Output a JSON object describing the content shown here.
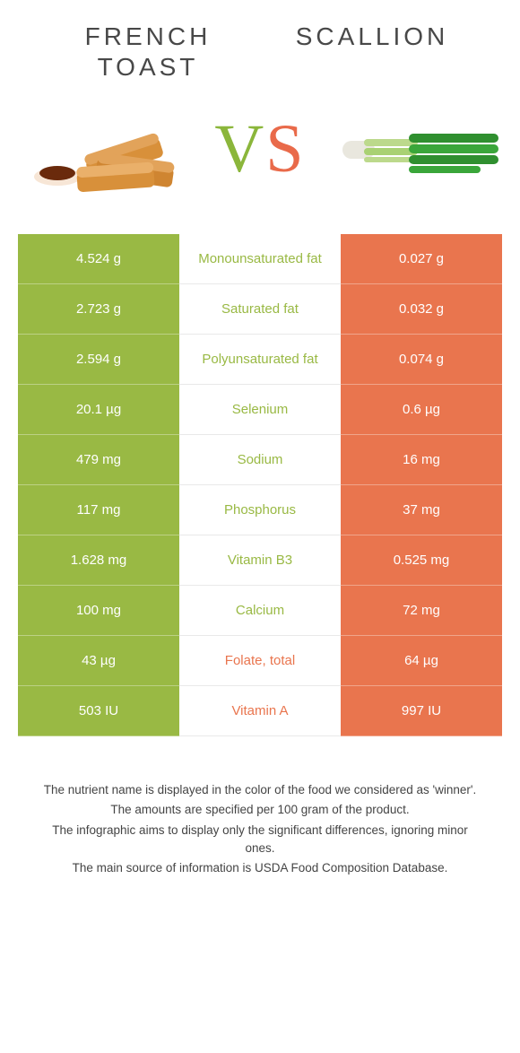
{
  "colors": {
    "green": "#99b944",
    "orange": "#e9754e",
    "title": "#484848",
    "footnote": "#444444",
    "background": "#ffffff"
  },
  "foods": {
    "left": {
      "title": "French toast"
    },
    "right": {
      "title": "Scallion"
    }
  },
  "vs": {
    "v": "V",
    "s": "S"
  },
  "rows": [
    {
      "nutrient": "Monounsaturated fat",
      "left": "4.524 g",
      "right": "0.027 g",
      "winner": "left"
    },
    {
      "nutrient": "Saturated fat",
      "left": "2.723 g",
      "right": "0.032 g",
      "winner": "left"
    },
    {
      "nutrient": "Polyunsaturated fat",
      "left": "2.594 g",
      "right": "0.074 g",
      "winner": "left"
    },
    {
      "nutrient": "Selenium",
      "left": "20.1 µg",
      "right": "0.6 µg",
      "winner": "left"
    },
    {
      "nutrient": "Sodium",
      "left": "479 mg",
      "right": "16 mg",
      "winner": "left"
    },
    {
      "nutrient": "Phosphorus",
      "left": "117 mg",
      "right": "37 mg",
      "winner": "left"
    },
    {
      "nutrient": "Vitamin B3",
      "left": "1.628 mg",
      "right": "0.525 mg",
      "winner": "left"
    },
    {
      "nutrient": "Calcium",
      "left": "100 mg",
      "right": "72 mg",
      "winner": "left"
    },
    {
      "nutrient": "Folate, total",
      "left": "43 µg",
      "right": "64 µg",
      "winner": "right"
    },
    {
      "nutrient": "Vitamin A",
      "left": "503 IU",
      "right": "997 IU",
      "winner": "right"
    }
  ],
  "footnotes": [
    "The nutrient name is displayed in the color of the food we considered as 'winner'.",
    "The amounts are specified per 100 gram of the product.",
    "The infographic aims to display only the significant differences, ignoring minor ones.",
    "The main source of information is USDA Food Composition Database."
  ]
}
